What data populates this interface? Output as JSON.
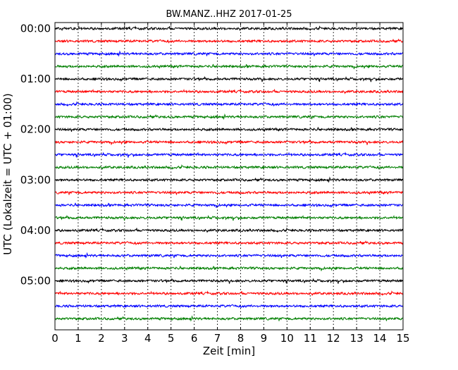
{
  "chart_data": {
    "type": "line",
    "chart_subtype": "seismogram-dayplot",
    "title": "BW.MANZ..HHZ 2017-01-25",
    "xlabel": "Zeit  [min]",
    "ylabel": "UTC (Lokalzeit = UTC + 01:00)",
    "xlim": [
      0,
      15
    ],
    "x_ticks": [
      "0",
      "1",
      "2",
      "3",
      "4",
      "5",
      "6",
      "7",
      "8",
      "9",
      "10",
      "11",
      "12",
      "13",
      "14",
      "15"
    ],
    "y_tick_labels": [
      "00:00",
      "01:00",
      "02:00",
      "03:00",
      "04:00",
      "05:00"
    ],
    "traces_per_hour": 4,
    "trace_count": 24,
    "trace_colors": [
      "#000000",
      "#ff0000",
      "#0000ff",
      "#007f00"
    ],
    "vertical_grid": "dotted",
    "grid_color": "#000000"
  }
}
